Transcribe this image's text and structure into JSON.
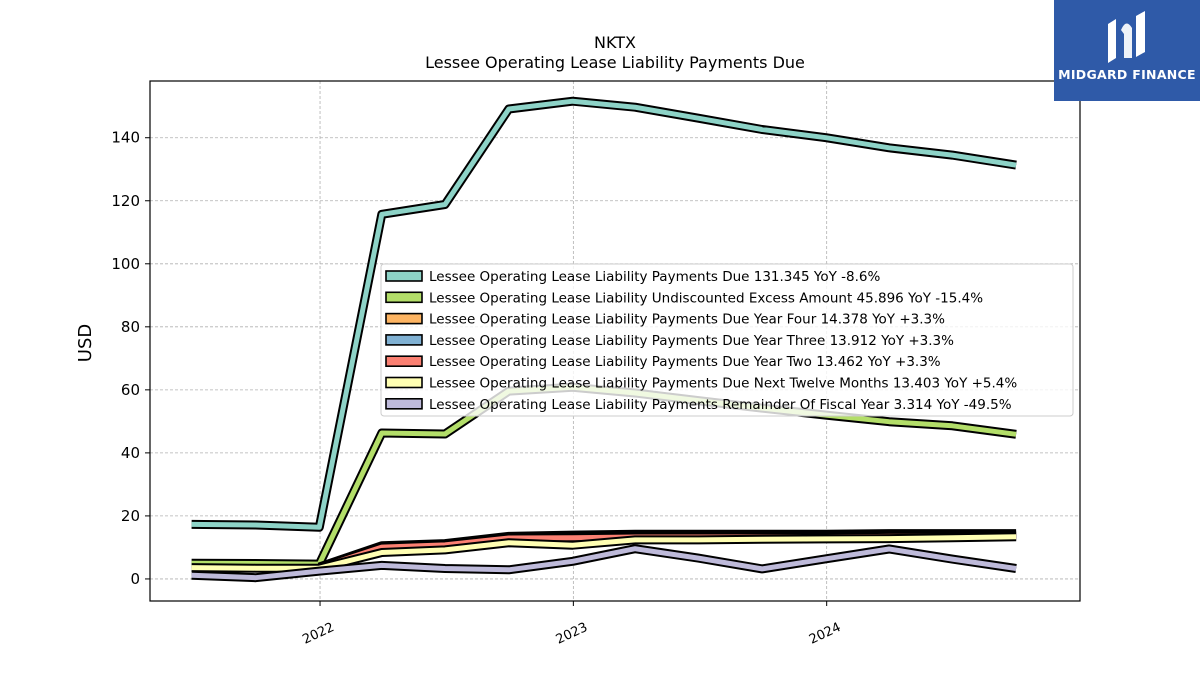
{
  "brand": {
    "name": "MIDGARD FINANCE",
    "color": "#2f5aa8"
  },
  "chart_data": {
    "type": "line",
    "title": "NKTX",
    "subtitle": "Lessee Operating Lease Liability Payments Due",
    "xlabel": "",
    "ylabel": "USD",
    "ylim": [
      -7,
      158
    ],
    "xlim": [
      "2021-05-01",
      "2024-12-31"
    ],
    "yticks": [
      0,
      20,
      40,
      60,
      80,
      100,
      120,
      140
    ],
    "xticks": [
      "2022",
      "2023",
      "2024"
    ],
    "grid": true,
    "legend_position": "center-right",
    "x": [
      "2021-06-30",
      "2021-09-30",
      "2021-12-31",
      "2022-03-31",
      "2022-06-30",
      "2022-09-30",
      "2022-12-31",
      "2023-03-31",
      "2023-06-30",
      "2023-09-30",
      "2023-12-31",
      "2024-03-31",
      "2024-06-30",
      "2024-09-30"
    ],
    "series": [
      {
        "name": "Lessee Operating Lease Liability Payments Due",
        "legend": "Lessee Operating Lease Liability Payments Due  131.345 YoY -8.6%",
        "color": "#8dd3c7",
        "values": [
          17.3,
          17.1,
          16.4,
          115.7,
          118.8,
          149.1,
          151.6,
          149.7,
          146.2,
          142.6,
          140.0,
          136.8,
          134.5,
          131.3
        ]
      },
      {
        "name": "Lessee Operating Lease Liability Undiscounted Excess Amount",
        "legend": "Lessee Operating Lease Liability Undiscounted Excess Amount  45.896 YoY -15.4%",
        "color": "#b3de69",
        "values": [
          5.0,
          4.9,
          4.7,
          46.3,
          46.0,
          59.6,
          60.8,
          59.0,
          56.6,
          54.2,
          52.0,
          49.9,
          48.6,
          45.9
        ]
      },
      {
        "name": "Lessee Operating Lease Liability Payments Due Year Four",
        "legend": "Lessee Operating Lease Liability Payments Due Year Four  14.378 YoY +3.3%",
        "color": "#fdb462",
        "values": [
          null,
          null,
          3.8,
          10.5,
          11.2,
          13.5,
          13.9,
          14.2,
          14.2,
          14.2,
          14.2,
          14.4,
          14.4,
          14.4
        ]
      },
      {
        "name": "Lessee Operating Lease Liability Payments Due Year Three",
        "legend": "Lessee Operating Lease Liability Payments Due Year Three  13.912 YoY +3.3%",
        "color": "#80b1d3",
        "values": [
          null,
          null,
          3.7,
          10.3,
          11.0,
          13.3,
          13.5,
          13.8,
          13.8,
          13.8,
          13.8,
          13.9,
          13.9,
          13.9
        ]
      },
      {
        "name": "Lessee Operating Lease Liability Payments Due Year Two",
        "legend": "Lessee Operating Lease Liability Payments Due Year Two  13.462 YoY +3.3%",
        "color": "#fb8072",
        "values": [
          null,
          null,
          3.6,
          10.1,
          10.8,
          13.0,
          13.1,
          13.3,
          13.3,
          13.3,
          13.3,
          13.5,
          13.5,
          13.5
        ]
      },
      {
        "name": "Lessee Operating Lease Liability Payments Due Next Twelve Months",
        "legend": "Lessee Operating Lease Liability Payments Due Next Twelve Months  13.403 YoY +5.4%",
        "color": "#ffffb3",
        "values": [
          3.6,
          3.4,
          3.4,
          8.4,
          9.2,
          11.5,
          10.7,
          12.4,
          12.4,
          12.6,
          12.7,
          12.8,
          13.1,
          13.4
        ]
      },
      {
        "name": "Lessee Operating Lease Liability Payments Remainder Of Fiscal Year",
        "legend": "Lessee Operating Lease Liability Payments Remainder Of Fiscal Year  3.314 YoY -49.5%",
        "color": "#bebada",
        "values": [
          1.2,
          0.4,
          2.5,
          4.3,
          3.3,
          2.9,
          5.6,
          9.6,
          6.6,
          3.2,
          6.4,
          9.5,
          6.3,
          3.3
        ]
      }
    ]
  }
}
